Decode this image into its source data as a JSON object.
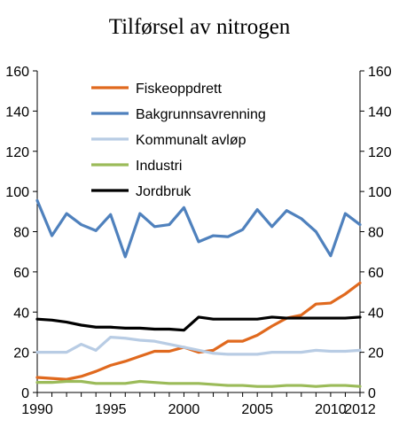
{
  "chart_data": {
    "type": "line",
    "title": "Tilførsel av nitrogen",
    "xlabel": "",
    "ylabel": "",
    "x": [
      1990,
      1991,
      1992,
      1993,
      1994,
      1995,
      1996,
      1997,
      1998,
      1999,
      2000,
      2001,
      2002,
      2003,
      2004,
      2005,
      2006,
      2007,
      2008,
      2009,
      2010,
      2011,
      2012
    ],
    "xlim": [
      1990,
      2012
    ],
    "x_ticks": [
      1990,
      1995,
      2000,
      2005,
      2010,
      2012
    ],
    "ylim": [
      0,
      160
    ],
    "y_ticks": [
      0,
      20,
      40,
      60,
      80,
      100,
      120,
      140,
      160
    ],
    "y2lim": [
      0,
      160
    ],
    "y2_ticks": [
      0,
      20,
      40,
      60,
      80,
      100,
      120,
      140,
      160
    ],
    "grid": false,
    "legend_position": "top-center",
    "series": [
      {
        "name": "Fiskeoppdrett",
        "color": "#e0691e",
        "values": [
          7.5,
          7,
          6.5,
          8,
          10.5,
          13.5,
          15.5,
          18,
          20.5,
          20.5,
          22.5,
          20,
          21,
          25.5,
          25.5,
          28.5,
          33,
          37,
          38.5,
          44,
          44.5,
          49,
          54.5
        ]
      },
      {
        "name": "Bakgrunnsavrenning",
        "color": "#4f81bd",
        "values": [
          95.5,
          78,
          89,
          83.5,
          80.5,
          88.5,
          67.5,
          89,
          82.5,
          83.5,
          92,
          75,
          78,
          77.5,
          81,
          91,
          82.5,
          90.5,
          86.5,
          80,
          68,
          89,
          83.5
        ]
      },
      {
        "name": "Kommunalt avløp",
        "color": "#b8cce4",
        "values": [
          20,
          20,
          20,
          24,
          21,
          27.5,
          27,
          26,
          25.5,
          24,
          22.5,
          21,
          19.5,
          19,
          19,
          19,
          20,
          20,
          20,
          21,
          20.5,
          20.5,
          21
        ]
      },
      {
        "name": "Industri",
        "color": "#9bbb59",
        "values": [
          5,
          5,
          5.5,
          5.5,
          4.5,
          4.5,
          4.5,
          5.5,
          5,
          4.5,
          4.5,
          4.5,
          4,
          3.5,
          3.5,
          3,
          3,
          3.5,
          3.5,
          3,
          3.5,
          3.5,
          3
        ]
      },
      {
        "name": "Jordbruk",
        "color": "#000000",
        "values": [
          36.5,
          36,
          35,
          33.5,
          32.5,
          32.5,
          32,
          32,
          31.5,
          31.5,
          31,
          37.5,
          36.5,
          36.5,
          36.5,
          36.5,
          37.5,
          37,
          37,
          37,
          37,
          37,
          37.5
        ]
      }
    ]
  }
}
